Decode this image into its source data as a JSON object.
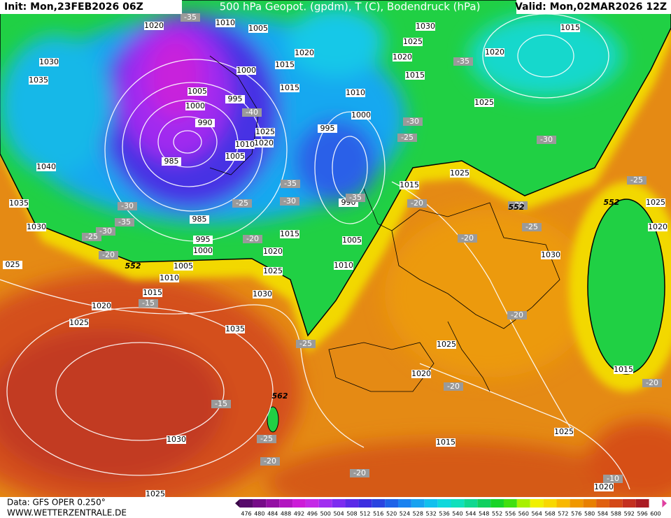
{
  "header": {
    "init": "Init: Mon,23FEB2026 06Z",
    "title": "500 hPa Geopot. (gpdm), T (C), Bodendruck (hPa)",
    "valid": "Valid: Mon,02MAR2026 12Z"
  },
  "footer": {
    "source": "Data: GFS OPER 0.250°",
    "site": "WWW.WETTERZENTRALE.DE"
  },
  "colorbar": {
    "labels": [
      476,
      480,
      484,
      488,
      492,
      496,
      500,
      504,
      508,
      512,
      516,
      520,
      524,
      528,
      532,
      536,
      540,
      544,
      548,
      552,
      556,
      560,
      564,
      568,
      572,
      576,
      580,
      584,
      588,
      592,
      596,
      600
    ],
    "colors": [
      "#3a0848",
      "#580a6c",
      "#760c88",
      "#9410a4",
      "#b216c0",
      "#cc1cd8",
      "#c42ae6",
      "#a02ef0",
      "#7c2cf0",
      "#5a2ae8",
      "#3c2ee0",
      "#2a44e0",
      "#1e62e8",
      "#1a82f0",
      "#18a2f0",
      "#12c0ee",
      "#10d8dc",
      "#10e0bc",
      "#10d890",
      "#10d060",
      "#18d428",
      "#40e010",
      "#a8f000",
      "#f0f000",
      "#f8d800",
      "#f8b800",
      "#f09800",
      "#e88000",
      "#e06010",
      "#d44818",
      "#c43020",
      "#aa1c24",
      "#e040a0"
    ]
  },
  "map_labels": {
    "pressure": [
      "1020",
      "1010",
      "1005",
      "1030",
      "1035",
      "1005",
      "1000",
      "995",
      "1000",
      "990",
      "985",
      "1040",
      "1035",
      "1030",
      "985",
      "995",
      "1000",
      "1005",
      "1010",
      "1015",
      "1020",
      "1025",
      "1035",
      "1030",
      "1025",
      "1020",
      "1015",
      "1005",
      "1010",
      "990",
      "995",
      "1000",
      "1010",
      "1015",
      "1015",
      "1020",
      "1025",
      "1020",
      "1010",
      "1005",
      "1020",
      "1025",
      "1030",
      "1015",
      "1025",
      "1020",
      "1015",
      "1025",
      "1015",
      "1030",
      "1025",
      "1020",
      "1015",
      "1025",
      "1020",
      "1015",
      "1020",
      "1025",
      "025",
      "1030",
      "1025"
    ],
    "temperature": [
      "-35",
      "-35",
      "-40",
      "-30",
      "-25",
      "-30",
      "-35",
      "-30",
      "-25",
      "-30",
      "-35",
      "-30",
      "-25",
      "-20",
      "-20",
      "-20",
      "-20",
      "-25",
      "-30",
      "-25",
      "-20",
      "-15",
      "-25",
      "-20",
      "-15",
      "-25",
      "-20",
      "-20",
      "-20",
      "-10",
      "-35"
    ],
    "geopotential": [
      "552",
      "552",
      "552",
      "562"
    ]
  }
}
